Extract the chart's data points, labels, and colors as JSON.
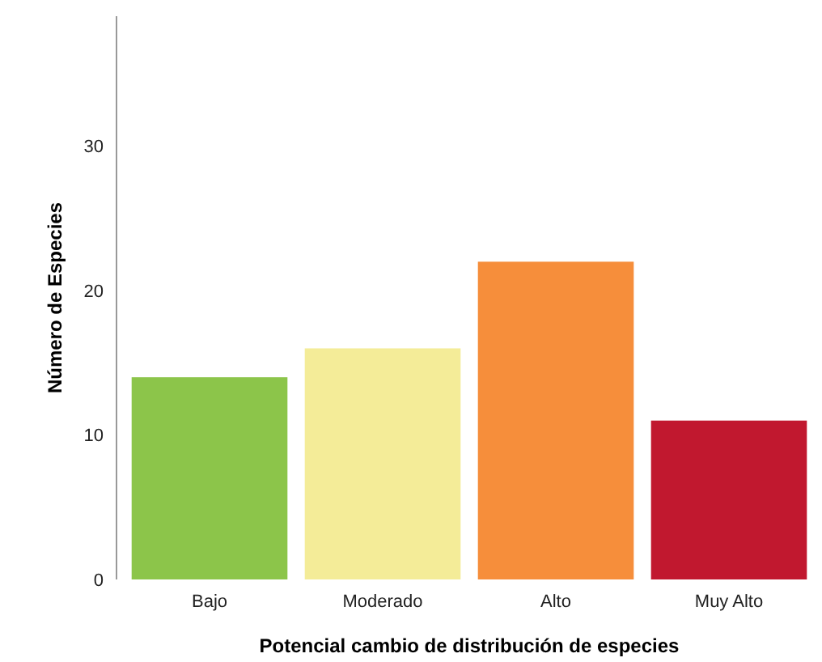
{
  "chart_data": {
    "type": "bar",
    "xlabel": "Potencial cambio de distribución de especies",
    "ylabel": "Número de Especies",
    "categories": [
      "Bajo",
      "Moderado",
      "Alto",
      "Muy Alto"
    ],
    "values": [
      14,
      16,
      22,
      11
    ],
    "colors": [
      "#8cc54a",
      "#f4ec98",
      "#f68e3b",
      "#c1182f"
    ],
    "ylim": [
      0,
      39
    ],
    "yticks": [
      0,
      10,
      20,
      30
    ],
    "grid": false
  }
}
